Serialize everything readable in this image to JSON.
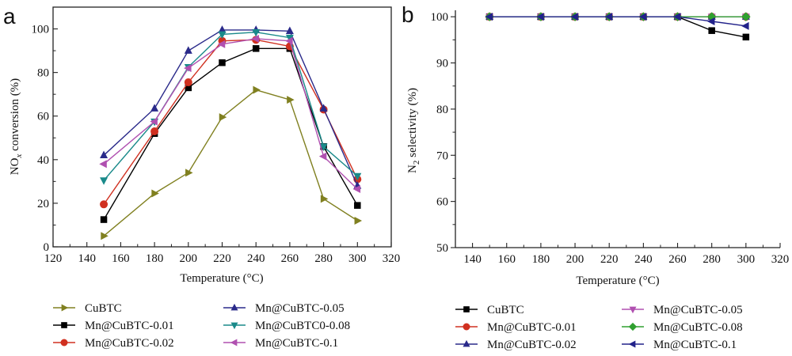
{
  "chart_data": [
    {
      "panel": "a",
      "type": "line",
      "title": "",
      "xlabel": "Temperature (°C)",
      "ylabel": "NOx conversion (%)",
      "ylabel_main": "NO",
      "ylabel_sub": "x",
      "ylabel_rest": " conversion (%)",
      "xlim": [
        120,
        320
      ],
      "ylim": [
        0,
        110
      ],
      "xticks": [
        120,
        140,
        160,
        180,
        200,
        220,
        240,
        260,
        280,
        300,
        320
      ],
      "xtick_labels": [
        "120",
        "140",
        "160",
        "180",
        "200",
        "220",
        "240",
        "260",
        "280",
        "300",
        "320"
      ],
      "yticks": [
        0,
        20,
        40,
        60,
        80,
        100
      ],
      "ytick_labels": [
        "0",
        "20",
        "40",
        "60",
        "80",
        "100"
      ],
      "grid": false,
      "frame": "box",
      "legend_placement": "bottom",
      "x": [
        150,
        180,
        200,
        220,
        240,
        260,
        280,
        300
      ],
      "series": [
        {
          "name": "CuBTC",
          "color": "#808020",
          "marker": "triangle-right",
          "values": [
            5,
            24.5,
            34,
            59.5,
            72,
            67.5,
            22,
            12
          ]
        },
        {
          "name": "Mn@CuBTC-0.01",
          "color": "#000000",
          "marker": "square",
          "values": [
            12.5,
            52,
            73,
            84.5,
            91,
            91,
            46,
            19
          ]
        },
        {
          "name": "Mn@CuBTC-0.02",
          "color": "#d03020",
          "marker": "circle",
          "values": [
            19.5,
            53,
            75.5,
            94.5,
            95,
            92,
            63,
            31
          ]
        },
        {
          "name": "Mn@CuBTC-0.05",
          "color": "#2a2a8a",
          "marker": "triangle-up",
          "values": [
            42,
            63.5,
            90,
            99.5,
            99.5,
            99,
            63.5,
            28
          ]
        },
        {
          "name": "Mn@CuBTC0-0.08",
          "color": "#1a8a8a",
          "marker": "triangle-down",
          "values": [
            30.5,
            57.5,
            82.5,
            97.5,
            98.5,
            96,
            46,
            32.5
          ]
        },
        {
          "name": "Mn@CuBTC-0.1",
          "color": "#b050b0",
          "marker": "triangle-left",
          "values": [
            38,
            57.5,
            82,
            93,
            95.5,
            94.5,
            41.5,
            26.5
          ]
        }
      ]
    },
    {
      "panel": "b",
      "type": "line",
      "title": "",
      "xlabel": "Temperature (°C)",
      "ylabel": "N2 selectivity (%)",
      "ylabel_main": "N",
      "ylabel_sub": "2",
      "ylabel_rest": " selectivity (%)",
      "xlim": [
        130,
        320
      ],
      "ylim": [
        50,
        101.4
      ],
      "xticks": [
        140,
        160,
        180,
        200,
        220,
        240,
        260,
        280,
        300,
        320
      ],
      "xtick_labels": [
        "140",
        "160",
        "180",
        "200",
        "220",
        "240",
        "260",
        "280",
        "300",
        "320"
      ],
      "yticks": [
        50,
        60,
        70,
        80,
        90,
        100
      ],
      "ytick_labels": [
        "50",
        "60",
        "70",
        "80",
        "90",
        "100"
      ],
      "grid": false,
      "frame": "open",
      "legend_placement": "bottom",
      "x": [
        150,
        180,
        200,
        220,
        240,
        260,
        280,
        300
      ],
      "series": [
        {
          "name": "CuBTC",
          "color": "#000000",
          "marker": "square",
          "values": [
            100,
            100,
            100,
            100,
            100,
            100,
            97,
            95.6
          ]
        },
        {
          "name": "Mn@CuBTC-0.01",
          "color": "#d03020",
          "marker": "circle",
          "values": [
            100,
            100,
            100,
            100,
            100,
            100,
            100,
            100
          ]
        },
        {
          "name": "Mn@CuBTC-0.02",
          "color": "#2a2a8a",
          "marker": "triangle-up",
          "values": [
            100,
            100,
            100,
            100,
            100,
            100,
            100,
            100
          ]
        },
        {
          "name": "Mn@CuBTC-0.05",
          "color": "#b050b0",
          "marker": "triangle-down",
          "values": [
            100,
            100,
            100,
            100,
            100,
            100,
            100,
            100
          ]
        },
        {
          "name": "Mn@CuBTC-0.08",
          "color": "#30a030",
          "marker": "diamond",
          "values": [
            100,
            100,
            100,
            100,
            100,
            100,
            100,
            100
          ]
        },
        {
          "name": "Mn@CuBTC-0.1",
          "color": "#22228a",
          "marker": "triangle-left",
          "values": [
            100,
            100,
            100,
            100,
            100,
            100,
            99,
            98
          ]
        }
      ]
    }
  ],
  "panels": {
    "a": {
      "label": "a"
    },
    "b": {
      "label": "b"
    }
  }
}
